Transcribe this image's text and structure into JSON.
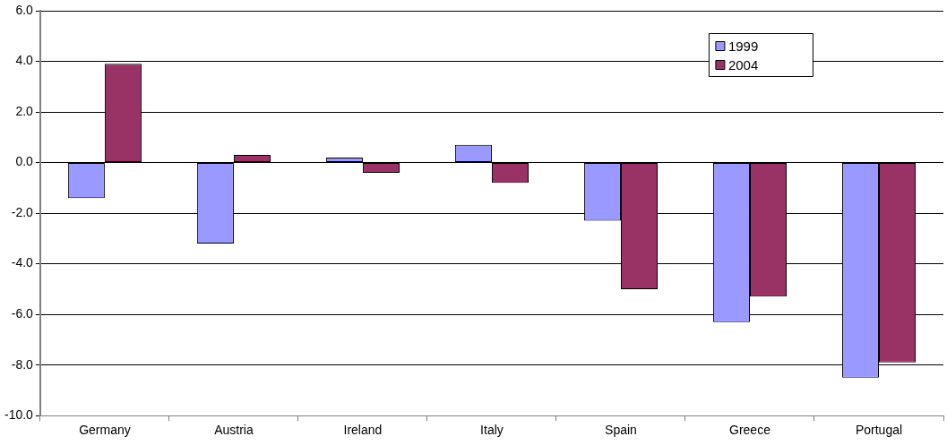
{
  "chart_data": {
    "type": "bar",
    "categories": [
      "Germany",
      "Austria",
      "Ireland",
      "Italy",
      "Spain",
      "Greece",
      "Portugal"
    ],
    "series": [
      {
        "name": "1999",
        "color": "#9999ff",
        "values": [
          -1.4,
          -3.2,
          0.2,
          0.7,
          -2.3,
          -6.3,
          -8.5
        ]
      },
      {
        "name": "2004",
        "color": "#993366",
        "values": [
          3.9,
          0.3,
          -0.4,
          -0.8,
          -5.0,
          -5.3,
          -7.9
        ]
      }
    ],
    "ylim": [
      -10,
      6
    ],
    "yticks": [
      {
        "value": -10,
        "label": "-10.0"
      },
      {
        "value": -8,
        "label": "-8.0"
      },
      {
        "value": -6,
        "label": "-6.0"
      },
      {
        "value": -4,
        "label": "-4.0"
      },
      {
        "value": -2,
        "label": "-2.0"
      },
      {
        "value": 0,
        "label": "0.0"
      },
      {
        "value": 2,
        "label": "2.0"
      },
      {
        "value": 4,
        "label": "4.0"
      },
      {
        "value": 6,
        "label": "6.0"
      }
    ],
    "grid": "y",
    "legend": "top right"
  }
}
